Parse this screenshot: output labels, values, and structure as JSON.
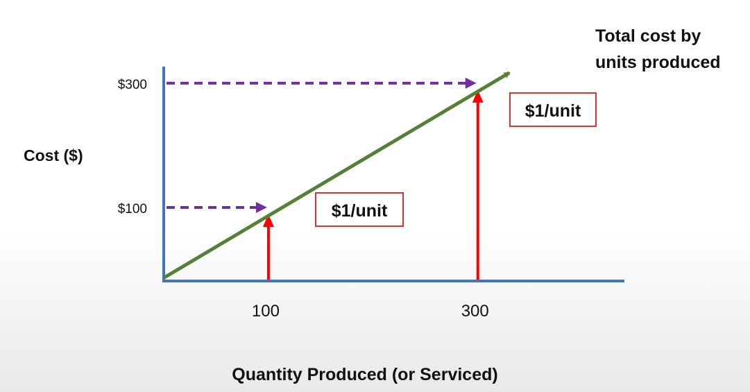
{
  "chart_data": {
    "type": "line",
    "title": "Total cost by units produced",
    "title_lines": [
      "Total cost by",
      "units produced"
    ],
    "xlabel": "Quantity Produced (or Serviced)",
    "ylabel": "Cost ($)",
    "x_ticks": [
      {
        "value": 100,
        "label": "100"
      },
      {
        "value": 300,
        "label": "300"
      }
    ],
    "y_ticks": [
      {
        "value": 100,
        "label": "$100"
      },
      {
        "value": 300,
        "label": "$300"
      }
    ],
    "xlim": [
      0,
      440
    ],
    "ylim": [
      -5,
      340
    ],
    "series": [
      {
        "x": [
          0,
          330
        ],
        "y": [
          0,
          330
        ],
        "color": "#538135"
      }
    ],
    "guides": [
      {
        "x": 100,
        "y": 100,
        "label": "$1/unit"
      },
      {
        "x": 300,
        "y": 300,
        "label": "$1/unit"
      }
    ],
    "grid": false,
    "colors": {
      "axis": "#4472c4",
      "line": "#538135",
      "vertical_arrow": "#ff0000",
      "dashed_arrow": "#7030a0",
      "callout_border": "#e03030"
    }
  }
}
